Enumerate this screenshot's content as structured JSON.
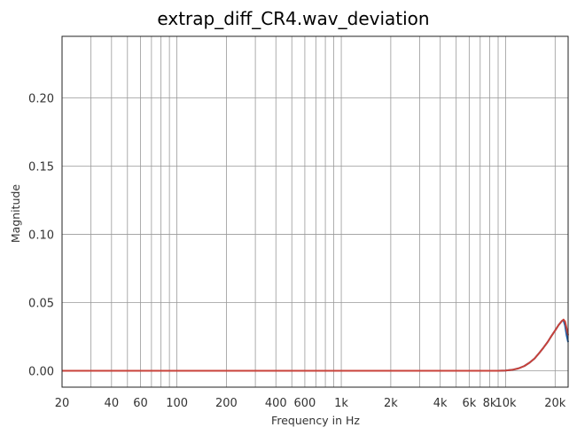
{
  "chart_data": {
    "type": "line",
    "title": "extrap_diff_CR4.wav_deviation",
    "xlabel": "Frequency in Hz",
    "ylabel": "Magnitude",
    "xscale": "log",
    "xlim": [
      20,
      24000
    ],
    "ylim": [
      -0.012,
      0.245
    ],
    "grid": true,
    "x_ticks": [
      {
        "value": 20,
        "label": "20"
      },
      {
        "value": 40,
        "label": "40"
      },
      {
        "value": 60,
        "label": "60"
      },
      {
        "value": 100,
        "label": "100"
      },
      {
        "value": 200,
        "label": "200"
      },
      {
        "value": 400,
        "label": "400"
      },
      {
        "value": 600,
        "label": "600"
      },
      {
        "value": 1000,
        "label": "1k"
      },
      {
        "value": 2000,
        "label": "2k"
      },
      {
        "value": 4000,
        "label": "4k"
      },
      {
        "value": 6000,
        "label": "6k"
      },
      {
        "value": 8000,
        "label": "8k"
      },
      {
        "value": 10000,
        "label": "10k"
      },
      {
        "value": 20000,
        "label": "20k"
      }
    ],
    "y_ticks": [
      {
        "value": 0.0,
        "label": "0.00"
      },
      {
        "value": 0.05,
        "label": "0.05"
      },
      {
        "value": 0.1,
        "label": "0.10"
      },
      {
        "value": 0.15,
        "label": "0.15"
      },
      {
        "value": 0.2,
        "label": "0.20"
      }
    ],
    "x_gridlines": [
      20,
      30,
      40,
      50,
      60,
      70,
      80,
      90,
      100,
      200,
      300,
      400,
      500,
      600,
      700,
      800,
      900,
      1000,
      2000,
      3000,
      4000,
      5000,
      6000,
      7000,
      8000,
      9000,
      10000,
      20000
    ],
    "series": [
      {
        "color": "#1f5fa8",
        "x": [
          20,
          100,
          1000,
          5000,
          9000,
          10000,
          11000,
          12000,
          13000,
          14000,
          15000,
          16000,
          17000,
          18000,
          19000,
          20000,
          21000,
          22000,
          22500,
          23000,
          23500,
          24000
        ],
        "y": [
          0.0,
          0.0,
          0.0,
          0.0,
          0.0,
          0.0002,
          0.0007,
          0.0018,
          0.0035,
          0.006,
          0.009,
          0.013,
          0.017,
          0.021,
          0.0255,
          0.0295,
          0.0335,
          0.0365,
          0.037,
          0.033,
          0.026,
          0.021
        ]
      },
      {
        "color": "#c8423a",
        "x": [
          20,
          100,
          1000,
          5000,
          9000,
          10000,
          11000,
          12000,
          13000,
          14000,
          15000,
          16000,
          17000,
          18000,
          19000,
          20000,
          21000,
          22000,
          22500,
          23000,
          23500,
          24000
        ],
        "y": [
          0.0,
          0.0,
          0.0,
          0.0,
          0.0,
          0.0002,
          0.0007,
          0.0018,
          0.0035,
          0.006,
          0.009,
          0.013,
          0.017,
          0.021,
          0.0255,
          0.0295,
          0.0335,
          0.0365,
          0.0375,
          0.036,
          0.031,
          0.026
        ]
      }
    ]
  }
}
